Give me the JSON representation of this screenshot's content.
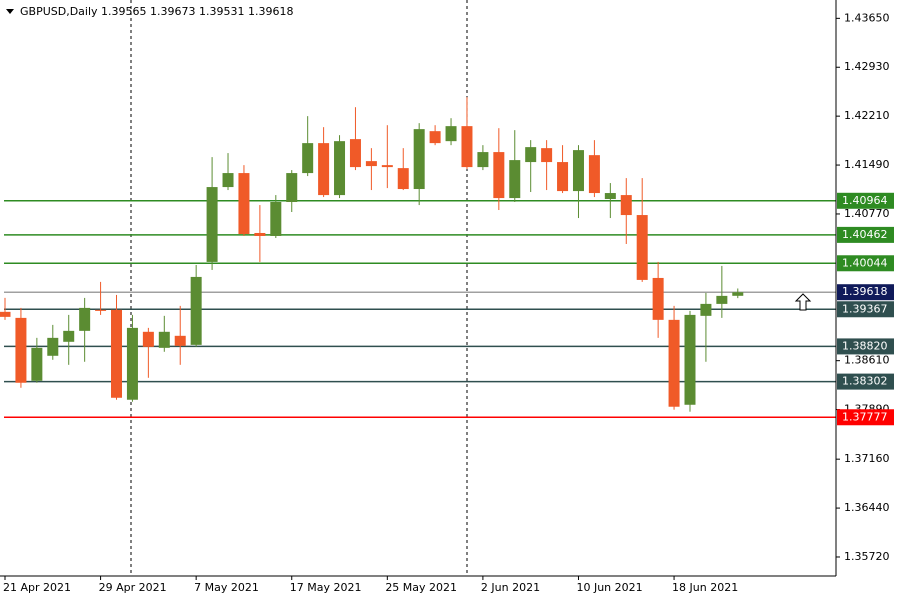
{
  "chart_data": {
    "type": "candlestick",
    "title": "GBPUSD,Daily  1.39565 1.39673 1.39531 1.39618",
    "categories": [
      "21 Apr 2021",
      null,
      null,
      null,
      null,
      null,
      "29 Apr 2021",
      null,
      null,
      null,
      null,
      null,
      "7 May 2021",
      null,
      null,
      null,
      null,
      null,
      "17 May 2021",
      null,
      null,
      null,
      null,
      null,
      "25 May 2021",
      null,
      null,
      null,
      null,
      null,
      "2 Jun 2021",
      null,
      null,
      null,
      null,
      null,
      "10 Jun 2021",
      null,
      null,
      null,
      null,
      null,
      "18 Jun 2021",
      null,
      null,
      null,
      null
    ],
    "open": [
      1.39329,
      1.3924,
      1.38314,
      1.38682,
      1.38888,
      1.39049,
      1.39358,
      1.39358,
      1.38035,
      1.39035,
      1.38799,
      1.38976,
      1.38843,
      1.40064,
      1.41166,
      1.41372,
      1.4049,
      1.40446,
      1.40946,
      1.41372,
      1.41813,
      1.41048,
      1.41872,
      1.41548,
      1.41489,
      1.41445,
      1.41137,
      1.41989,
      1.41842,
      1.42063,
      1.4146,
      1.41681,
      1.41004,
      1.41534,
      1.41739,
      1.41534,
      1.41107,
      1.41636,
      1.4099,
      1.41048,
      1.40754,
      1.39828,
      1.39211,
      1.37961,
      1.3927,
      1.39446,
      1.39565
    ],
    "high": [
      1.39534,
      1.39387,
      1.38946,
      1.39137,
      1.39284,
      1.39534,
      1.3977,
      1.39578,
      1.39284,
      1.39093,
      1.3927,
      1.39417,
      1.40019,
      1.41607,
      1.41666,
      1.41489,
      1.40901,
      1.41048,
      1.41416,
      1.4221,
      1.42048,
      1.4193,
      1.42342,
      1.41739,
      1.42077,
      1.41739,
      1.42107,
      1.42077,
      1.4218,
      1.42489,
      1.41783,
      1.42033,
      1.42004,
      1.41857,
      1.41857,
      1.41783,
      1.41783,
      1.41857,
      1.41225,
      1.41298,
      1.41298,
      1.40064,
      1.39417,
      1.39343,
      1.39608,
      1.40005,
      1.39673
    ],
    "low": [
      1.39211,
      1.38211,
      1.38285,
      1.38623,
      1.38549,
      1.38594,
      1.39284,
      1.38035,
      1.38006,
      1.38358,
      1.38741,
      1.38549,
      1.38814,
      1.39946,
      1.41122,
      1.40446,
      1.40064,
      1.40416,
      1.40799,
      1.41328,
      1.41019,
      1.41004,
      1.41416,
      1.41122,
      1.41151,
      1.41122,
      1.40901,
      1.41783,
      1.41783,
      1.41431,
      1.41416,
      1.40828,
      1.40946,
      1.41093,
      1.41122,
      1.41078,
      1.4071,
      1.41019,
      1.4071,
      1.40328,
      1.3977,
      1.38946,
      1.37888,
      1.37859,
      1.38594,
      1.3924,
      1.39531
    ],
    "close": [
      1.39255,
      1.38285,
      1.38799,
      1.38946,
      1.39049,
      1.39387,
      1.39343,
      1.38064,
      1.39093,
      1.38814,
      1.39035,
      1.38829,
      1.39843,
      1.41166,
      1.41372,
      1.40475,
      1.40446,
      1.40946,
      1.41372,
      1.41813,
      1.41048,
      1.41842,
      1.4146,
      1.41475,
      1.4146,
      1.41137,
      1.42019,
      1.41813,
      1.42063,
      1.4146,
      1.41681,
      1.41004,
      1.41563,
      1.41754,
      1.41534,
      1.41107,
      1.4171,
      1.41078,
      1.41078,
      1.40754,
      1.39799,
      1.39211,
      1.37932,
      1.39284,
      1.39446,
      1.39564,
      1.39618
    ],
    "up_color": "#5b8c32",
    "down_color": "#f05a28",
    "ylim": [
      1.3544,
      1.4392
    ],
    "yticks": [
      {
        "value": 1.4365,
        "label": "1.43650"
      },
      {
        "value": 1.4293,
        "label": "1.42930"
      },
      {
        "value": 1.4221,
        "label": "1.42210"
      },
      {
        "value": 1.4149,
        "label": "1.41490"
      },
      {
        "value": 1.4077,
        "label": "1.40770"
      },
      {
        "value": 1.3861,
        "label": "1.38610"
      },
      {
        "value": 1.3789,
        "label": "1.37890"
      },
      {
        "value": 1.3716,
        "label": "1.37160"
      },
      {
        "value": 1.3644,
        "label": "1.36440"
      },
      {
        "value": 1.3572,
        "label": "1.35720"
      }
    ],
    "levels": {
      "values": [
        1.40964,
        1.40462,
        1.40044,
        1.39367,
        1.3882,
        1.38302,
        1.37777,
        1.39618
      ],
      "value_labels": [
        "1.40964",
        "1.40462",
        "1.40044",
        "1.39367",
        "1.38820",
        "1.38302",
        "1.37777",
        "1.39618"
      ],
      "colors": [
        "#2e8b22",
        "#2e8b22",
        "#2e8b22",
        "#2f4f4f",
        "#2f4f4f",
        "#2f4f4f",
        "#ff0000",
        "#a0a0a0"
      ],
      "label_colors": [
        "#2e8b22",
        "#2e8b22",
        "#2e8b22",
        "#2f4f4f",
        "#2f4f4f",
        "#2f4f4f",
        "#ff0000",
        "#101a5a"
      ]
    }
  }
}
